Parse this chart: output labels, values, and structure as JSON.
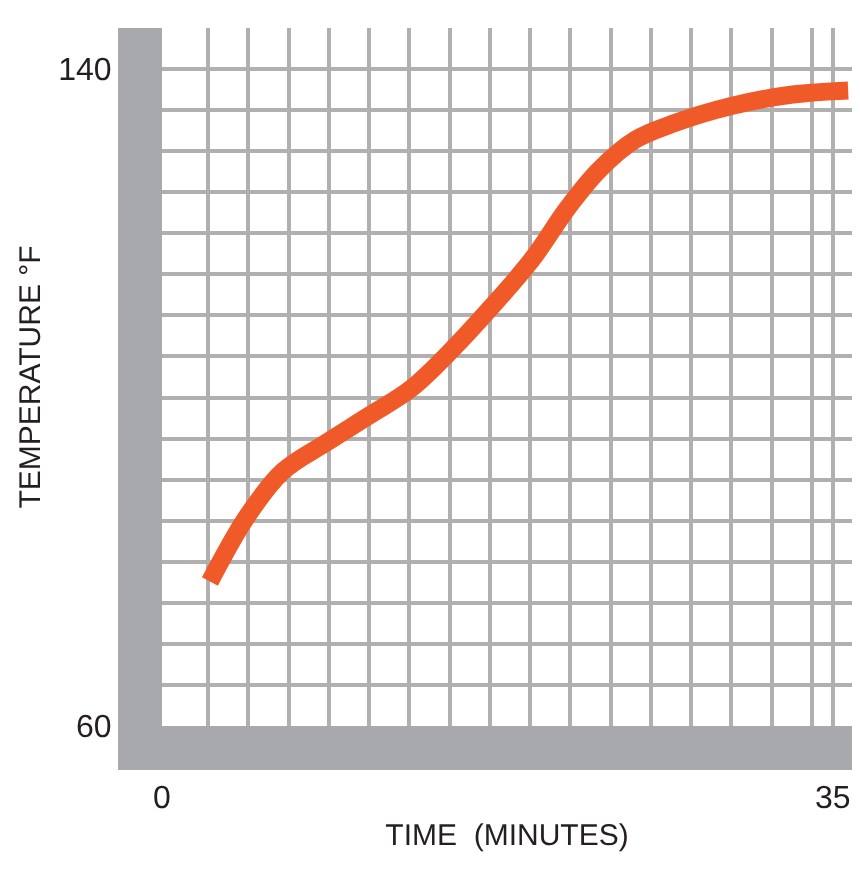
{
  "chart_data": {
    "type": "line",
    "xlabel": "TIME  (MINUTES)",
    "ylabel": "TEMPERATURE °F",
    "x": [
      2.5,
      4.4,
      6.3,
      8.5,
      10.8,
      13.0,
      15.2,
      17.1,
      19.3,
      21.2,
      22.8,
      24.7,
      26.6,
      29.7,
      32.9,
      35.8
    ],
    "series": [
      {
        "color": "#f05a28",
        "values": [
          77.6,
          85.4,
          91.0,
          94.4,
          97.8,
          101.1,
          106.0,
          110.8,
          116.8,
          123.2,
          127.7,
          131.4,
          133.3,
          135.5,
          136.9,
          137.4
        ]
      }
    ],
    "xlim": [
      0,
      36
    ],
    "ylim": [
      60,
      145
    ],
    "xticks": [
      0,
      {
        "value": 2.4,
        "label": null
      },
      {
        "value": 4.5,
        "label": null
      },
      {
        "value": 6.6,
        "label": null
      },
      {
        "value": 8.7,
        "label": null
      },
      {
        "value": 10.8,
        "label": null
      },
      {
        "value": 12.9,
        "label": null
      },
      {
        "value": 15,
        "label": null
      },
      {
        "value": 17.1,
        "label": null
      },
      {
        "value": 19.2,
        "label": null
      },
      {
        "value": 21.3,
        "label": null
      },
      {
        "value": 23.4,
        "label": null
      },
      {
        "value": 25.5,
        "label": null
      },
      {
        "value": 27.6,
        "label": null
      },
      {
        "value": 29.7,
        "label": null
      },
      {
        "value": 31.8,
        "label": null
      },
      {
        "value": 33.9,
        "label": null
      },
      35
    ],
    "yticks": [
      60,
      {
        "value": 65,
        "label": null
      },
      {
        "value": 70,
        "label": null
      },
      {
        "value": 75,
        "label": null
      },
      {
        "value": 80,
        "label": null
      },
      {
        "value": 85,
        "label": null
      },
      {
        "value": 90,
        "label": null
      },
      {
        "value": 95,
        "label": null
      },
      {
        "value": 100,
        "label": null
      },
      {
        "value": 105,
        "label": null
      },
      {
        "value": 110,
        "label": null
      },
      {
        "value": 115,
        "label": null
      },
      {
        "value": 120,
        "label": null
      },
      {
        "value": 125,
        "label": null
      },
      {
        "value": 130,
        "label": null
      },
      {
        "value": 135,
        "label": null
      },
      140
    ],
    "grid": true,
    "marker": "none",
    "line_style": "solid"
  }
}
